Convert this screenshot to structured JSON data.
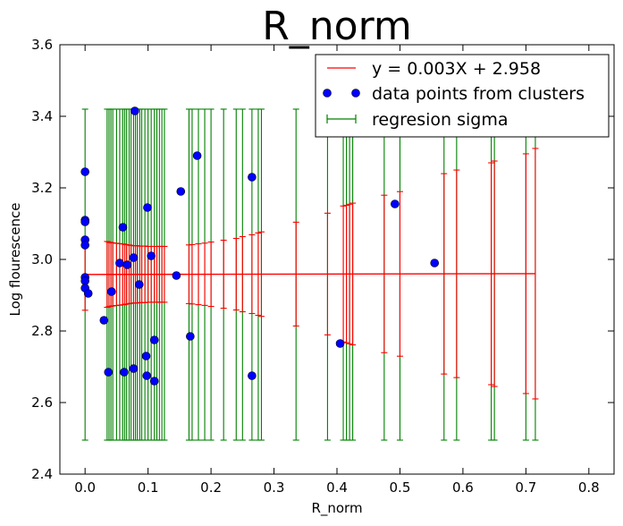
{
  "chart_data": {
    "type": "scatter",
    "title": "R_norm",
    "xlabel": "R_norm",
    "ylabel": "Log flourescence",
    "xlim": [
      -0.04,
      0.84
    ],
    "ylim": [
      2.4,
      3.6
    ],
    "xticks": [
      0.0,
      0.1,
      0.2,
      0.3,
      0.4,
      0.5,
      0.6,
      0.7,
      0.8
    ],
    "yticks": [
      2.4,
      2.6,
      2.8,
      3.0,
      3.2,
      3.4,
      3.6
    ],
    "grid": false,
    "legend_position": "top-right",
    "colors": {
      "line": "#ff0000",
      "points": "#0000ff",
      "green": "#008000",
      "red": "#ff0000"
    },
    "legend": [
      {
        "label": "y = 0.003X + 2.958",
        "kind": "line"
      },
      {
        "label": "data points from clusters",
        "kind": "marker"
      },
      {
        "label": "regresion sigma",
        "kind": "errorbar"
      }
    ],
    "regression": {
      "slope": 0.003,
      "intercept": 2.958,
      "x_range": [
        0.0,
        0.715
      ]
    },
    "points": {
      "x": [
        0.0,
        0.0,
        0.0,
        0.0,
        0.0,
        0.0,
        0.0,
        0.0,
        0.005,
        0.03,
        0.037,
        0.042,
        0.055,
        0.06,
        0.062,
        0.067,
        0.077,
        0.077,
        0.079,
        0.086,
        0.097,
        0.098,
        0.099,
        0.105,
        0.11,
        0.11,
        0.145,
        0.152,
        0.167,
        0.178,
        0.265,
        0.265,
        0.405,
        0.492,
        0.555
      ],
      "y": [
        3.245,
        3.11,
        3.105,
        3.055,
        3.04,
        2.95,
        2.94,
        2.92,
        2.905,
        2.83,
        2.685,
        2.91,
        2.99,
        3.09,
        2.685,
        2.985,
        3.005,
        2.695,
        3.415,
        2.93,
        2.73,
        2.675,
        3.145,
        3.01,
        2.66,
        2.775,
        2.955,
        3.19,
        2.785,
        3.29,
        3.23,
        2.675,
        2.765,
        3.155,
        2.99
      ]
    },
    "green_sigma_bars": {
      "low": 2.495,
      "high": 3.42,
      "x": [
        0.0,
        0.035,
        0.038,
        0.041,
        0.044,
        0.05,
        0.055,
        0.06,
        0.063,
        0.066,
        0.07,
        0.073,
        0.077,
        0.08,
        0.083,
        0.087,
        0.09,
        0.095,
        0.1,
        0.105,
        0.11,
        0.114,
        0.118,
        0.122,
        0.126,
        0.165,
        0.17,
        0.18,
        0.19,
        0.2,
        0.22,
        0.24,
        0.25,
        0.265,
        0.275,
        0.28,
        0.335,
        0.385,
        0.41,
        0.415,
        0.42,
        0.425,
        0.475,
        0.5,
        0.57,
        0.59,
        0.645,
        0.65,
        0.7,
        0.715
      ]
    },
    "red_sigma_bars": {
      "x": [
        0.0,
        0.035,
        0.038,
        0.041,
        0.044,
        0.05,
        0.055,
        0.06,
        0.063,
        0.066,
        0.07,
        0.073,
        0.077,
        0.08,
        0.083,
        0.087,
        0.09,
        0.095,
        0.1,
        0.105,
        0.11,
        0.114,
        0.118,
        0.122,
        0.126,
        0.165,
        0.17,
        0.18,
        0.19,
        0.2,
        0.22,
        0.24,
        0.25,
        0.265,
        0.275,
        0.28,
        0.335,
        0.385,
        0.41,
        0.415,
        0.42,
        0.425,
        0.475,
        0.5,
        0.57,
        0.59,
        0.645,
        0.65,
        0.7,
        0.715
      ],
      "half_width": [
        0.1,
        0.092,
        0.09,
        0.089,
        0.088,
        0.087,
        0.086,
        0.085,
        0.084,
        0.083,
        0.082,
        0.081,
        0.08,
        0.08,
        0.08,
        0.079,
        0.079,
        0.079,
        0.078,
        0.078,
        0.078,
        0.078,
        0.078,
        0.078,
        0.078,
        0.082,
        0.083,
        0.085,
        0.087,
        0.09,
        0.095,
        0.1,
        0.105,
        0.11,
        0.115,
        0.118,
        0.145,
        0.17,
        0.19,
        0.192,
        0.195,
        0.198,
        0.22,
        0.23,
        0.28,
        0.29,
        0.31,
        0.315,
        0.335,
        0.35
      ]
    }
  }
}
